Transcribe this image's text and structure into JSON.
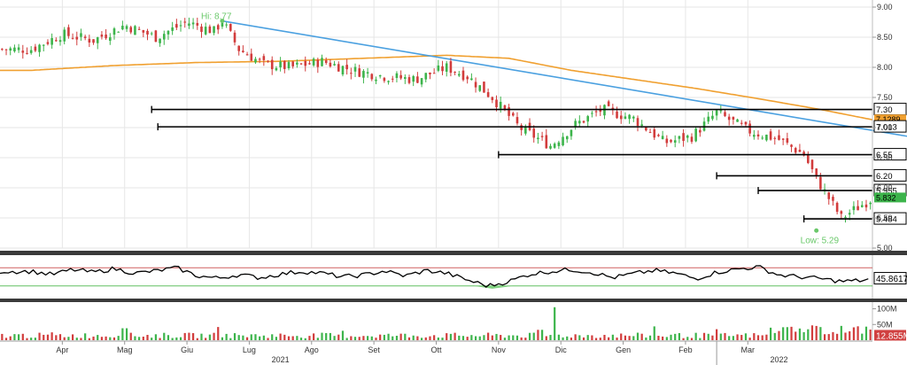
{
  "chart_data": {
    "type": "candlestick",
    "panels": [
      "price",
      "rsi",
      "volume"
    ],
    "price": {
      "ylim": [
        5.0,
        9.0
      ],
      "yticks": [
        "9.00",
        "8.50",
        "8.00",
        "7.50",
        "7.00",
        "6.50",
        "6.00",
        "5.50",
        "5.00"
      ],
      "ytick_values": [
        9.0,
        8.5,
        8.0,
        7.5,
        7.0,
        6.5,
        6.0,
        5.5,
        5.0
      ],
      "hi_label": "Hi: 8.77",
      "low_label": "Low: 5.29",
      "hi_value": 8.77,
      "low_value": 5.29,
      "hi_day": 92,
      "low_day": 378,
      "levels": [
        {
          "label": "7.30",
          "value": 7.3,
          "start_day": 58,
          "style": "boxed"
        },
        {
          "label": "7.1289",
          "value": 7.1289,
          "style": "orange-tag"
        },
        {
          "label": "7.013",
          "value": 7.013,
          "start_day": 61,
          "style": "boxed"
        },
        {
          "label": "6.55",
          "value": 6.55,
          "start_day": 225,
          "style": "boxed"
        },
        {
          "label": "6.20",
          "value": 6.2,
          "start_day": 330,
          "style": "boxed"
        },
        {
          "label": "5.955",
          "value": 5.955,
          "start_day": 350,
          "style": "boxed"
        },
        {
          "label": "5.832",
          "value": 5.832,
          "style": "green-tag"
        },
        {
          "label": "5.484",
          "value": 5.484,
          "start_day": 372,
          "style": "boxed"
        }
      ],
      "trendline": {
        "from_day": 92,
        "from": 8.77,
        "to_day": 440,
        "to": 6.75
      },
      "moving_average": {
        "x": [
          0,
          40,
          80,
          120,
          160,
          200,
          230,
          260,
          290,
          320,
          350,
          380,
          405
        ],
        "y": [
          7.95,
          8.03,
          8.08,
          8.1,
          8.15,
          8.2,
          8.15,
          7.95,
          7.8,
          7.65,
          7.48,
          7.3,
          7.13
        ]
      },
      "close_series": {
        "x": [
          0,
          15,
          30,
          45,
          60,
          75,
          88,
          92,
          100,
          112,
          125,
          140,
          155,
          170,
          185,
          200,
          210,
          222,
          235,
          250,
          262,
          275,
          290,
          305,
          318,
          330,
          345,
          360,
          372,
          378,
          390,
          405
        ],
        "y": [
          8.3,
          8.55,
          8.45,
          8.7,
          8.5,
          8.75,
          8.6,
          8.77,
          8.3,
          8.05,
          8.0,
          8.1,
          7.95,
          7.85,
          7.8,
          8.0,
          7.85,
          7.5,
          7.0,
          6.7,
          7.05,
          7.3,
          7.15,
          6.75,
          6.85,
          7.25,
          6.95,
          6.8,
          6.55,
          6.15,
          5.5,
          5.83
        ]
      }
    },
    "rsi": {
      "value_label": "45.8617",
      "upper": 70,
      "lower": 30,
      "ylim": [
        10,
        90
      ],
      "x": [
        0,
        10,
        20,
        30,
        40,
        50,
        60,
        70,
        80,
        90,
        100,
        110,
        120,
        130,
        140,
        150,
        160,
        170,
        180,
        190,
        200,
        210,
        220,
        230,
        240,
        250,
        260,
        270,
        280,
        290,
        300,
        310,
        320,
        330,
        340,
        350,
        360,
        370,
        380,
        390,
        400,
        405
      ],
      "y": [
        62,
        55,
        66,
        60,
        68,
        58,
        63,
        70,
        52,
        47,
        55,
        48,
        56,
        62,
        58,
        50,
        54,
        63,
        52,
        64,
        58,
        43,
        30,
        40,
        56,
        62,
        66,
        60,
        48,
        57,
        64,
        58,
        46,
        60,
        67,
        72,
        54,
        50,
        46,
        40,
        42,
        46
      ]
    },
    "volume": {
      "yticks": [
        "100M",
        "50M"
      ],
      "ytick_values": [
        100,
        50
      ],
      "unit": "M",
      "value_label": "12.855M",
      "value": 12.855,
      "spikes": [
        {
          "day": 10,
          "value": 25
        },
        {
          "day": 45,
          "value": 38
        },
        {
          "day": 90,
          "value": 42
        },
        {
          "day": 150,
          "value": 30
        },
        {
          "day": 245,
          "value": 33
        },
        {
          "day": 252,
          "value": 105
        },
        {
          "day": 300,
          "value": 44
        },
        {
          "day": 330,
          "value": 35
        },
        {
          "day": 370,
          "value": 46
        },
        {
          "day": 380,
          "value": 52
        }
      ]
    },
    "x_months": [
      "Apr",
      "Mag",
      "Giu",
      "Lug",
      "Ago",
      "Set",
      "Ott",
      "Nov",
      "Dic",
      "Gen",
      "Feb",
      "Mar"
    ],
    "month_days": [
      15,
      45,
      75,
      105,
      135,
      165,
      195,
      225,
      255,
      285,
      315,
      345
    ],
    "x_years": [
      "2021",
      "2022"
    ],
    "year_days": [
      120,
      360
    ],
    "year_boundary_day": 330,
    "x_domain": [
      -15,
      405
    ],
    "colors": {
      "up": "#3cb44b",
      "down": "#d23c3c",
      "ma": "#f0a030",
      "trend": "#4aa0e0",
      "level": "#000000",
      "grid": "#e6e6e6",
      "rsi_upper": "#d06060",
      "rsi_lower": "#60c060",
      "hi_low_text": "#6ac86a",
      "volume_tag": "#d04040"
    }
  }
}
